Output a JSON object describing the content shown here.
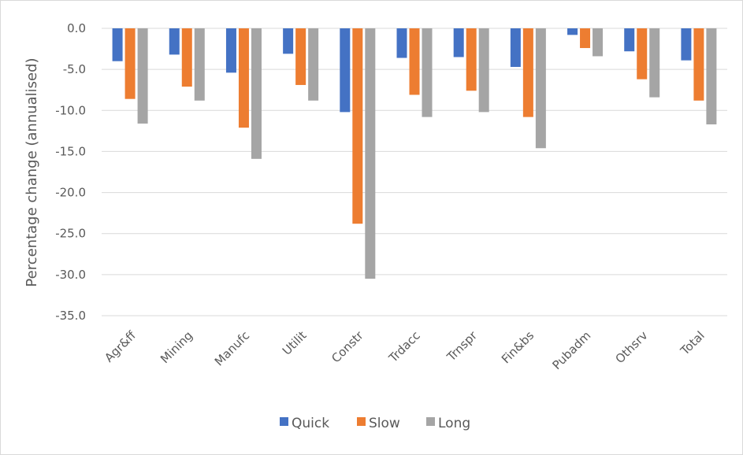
{
  "chart_data": {
    "type": "bar",
    "title": "",
    "xlabel": "",
    "ylabel": "Percentage change (annualised)",
    "ylim": [
      -35,
      0
    ],
    "ytick_step": 5,
    "yticks": [
      "0.0",
      "-5.0",
      "-10.0",
      "-15.0",
      "-20.0",
      "-25.0",
      "-30.0",
      "-35.0"
    ],
    "grid": true,
    "legend_position": "bottom",
    "categories": [
      "Agr&ff",
      "Mining",
      "Manufc",
      "Utilit",
      "Constr",
      "Trdacc",
      "Trnspr",
      "Fin&bs",
      "Pubadm",
      "Othsrv",
      "Total"
    ],
    "series": [
      {
        "name": "Quick",
        "color": "#4472c4",
        "values": [
          -4.0,
          -3.2,
          -5.4,
          -3.1,
          -10.2,
          -3.6,
          -3.5,
          -4.7,
          -0.8,
          -2.8,
          -3.9
        ]
      },
      {
        "name": "Slow",
        "color": "#ed7d31",
        "values": [
          -8.6,
          -7.1,
          -12.1,
          -6.9,
          -23.8,
          -8.1,
          -7.6,
          -10.8,
          -2.4,
          -6.2,
          -8.8
        ]
      },
      {
        "name": "Long",
        "color": "#a5a5a5",
        "values": [
          -11.6,
          -8.8,
          -15.9,
          -8.8,
          -30.5,
          -10.8,
          -10.2,
          -14.6,
          -3.4,
          -8.4,
          -11.7
        ]
      }
    ]
  }
}
